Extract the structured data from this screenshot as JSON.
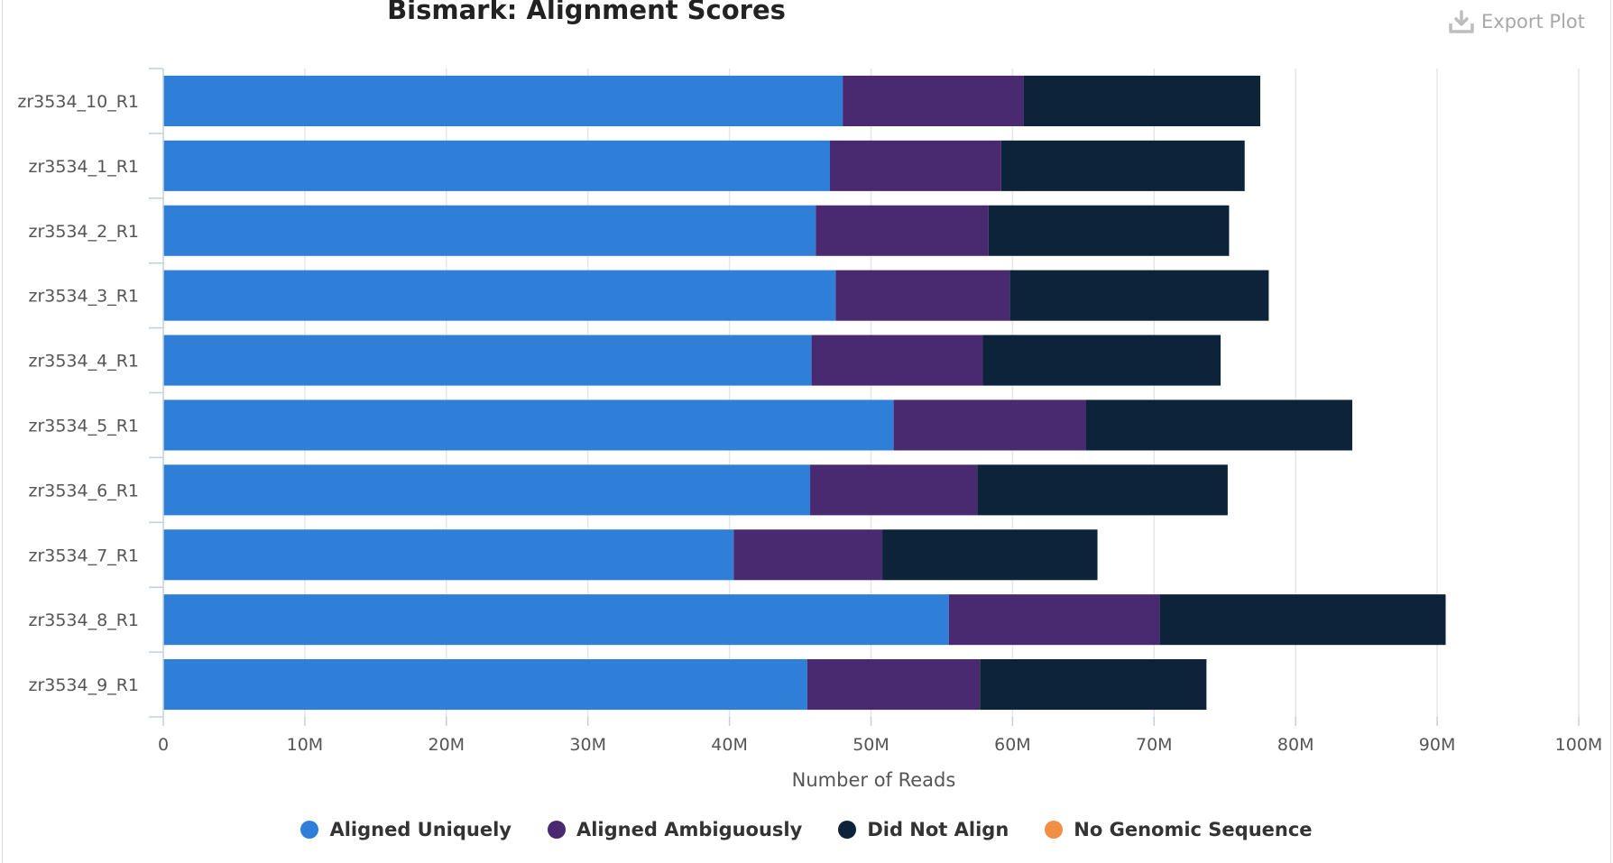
{
  "export_label": "Export Plot",
  "chart_data": {
    "type": "bar",
    "orientation": "horizontal",
    "stacked": true,
    "title": "Bismark: Alignment Scores",
    "xlabel": "Number of Reads",
    "ylabel": "",
    "xlim": [
      0,
      100000000
    ],
    "x_ticks": [
      "0",
      "10M",
      "20M",
      "30M",
      "40M",
      "50M",
      "60M",
      "70M",
      "80M",
      "90M",
      "100M"
    ],
    "grid": true,
    "legend_position": "bottom",
    "categories": [
      "zr3534_10_R1",
      "zr3534_1_R1",
      "zr3534_2_R1",
      "zr3534_3_R1",
      "zr3534_4_R1",
      "zr3534_5_R1",
      "zr3534_6_R1",
      "zr3534_7_R1",
      "zr3534_8_R1",
      "zr3534_9_R1"
    ],
    "series": [
      {
        "name": "Aligned Uniquely",
        "color": "#2f7ed8",
        "values": [
          48000000,
          47100000,
          46100000,
          47500000,
          45800000,
          51600000,
          45700000,
          40300000,
          55500000,
          45500000
        ]
      },
      {
        "name": "Aligned Ambiguously",
        "color": "#492970",
        "values": [
          12800000,
          12100000,
          12200000,
          12300000,
          12100000,
          13600000,
          11800000,
          10500000,
          14900000,
          12200000
        ]
      },
      {
        "name": "Did Not Align",
        "color": "#0d233a",
        "values": [
          16700000,
          17200000,
          17000000,
          18300000,
          16800000,
          18800000,
          17700000,
          15200000,
          20200000,
          16000000
        ]
      },
      {
        "name": "No Genomic Sequence",
        "color": "#f28f43",
        "values": [
          0,
          0,
          0,
          0,
          0,
          0,
          0,
          0,
          0,
          0
        ]
      }
    ]
  }
}
